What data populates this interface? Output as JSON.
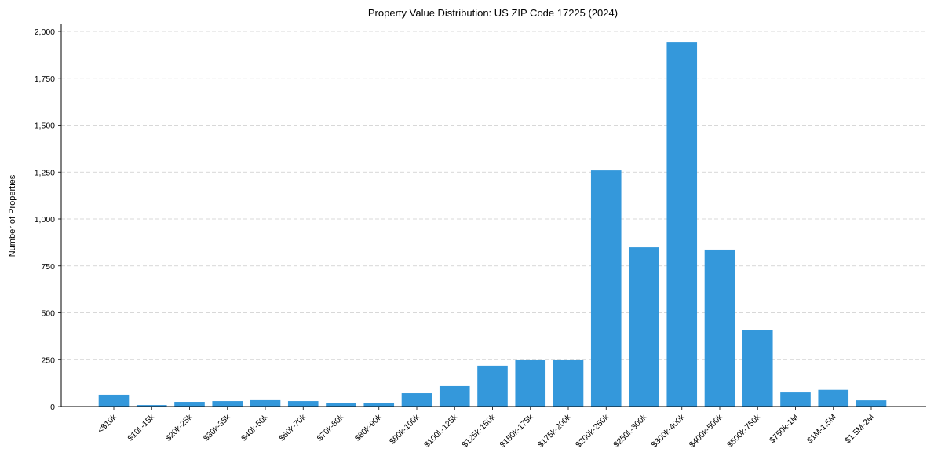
{
  "chart_data": {
    "type": "bar",
    "title": "Property Value Distribution: US ZIP Code 17225 (2024)",
    "xlabel": "",
    "ylabel": "Number of Properties",
    "ylim": [
      0,
      2000
    ],
    "yticks": [
      "0",
      "250",
      "500",
      "750",
      "1,000",
      "1,250",
      "1,500",
      "1,750",
      "2,000"
    ],
    "ytick_values": [
      0,
      250,
      500,
      750,
      1000,
      1250,
      1500,
      1750,
      2000
    ],
    "grid": "y-dashed",
    "bar_color": "#3498db",
    "categories": [
      "<$10k",
      "$10k-15k",
      "$20k-25k",
      "$30k-35k",
      "$40k-50k",
      "$60k-70k",
      "$70k-80k",
      "$80k-90k",
      "$90k-100k",
      "$100k-125k",
      "$125k-150k",
      "$150k-175k",
      "$175k-200k",
      "$200k-250k",
      "$250k-300k",
      "$300k-400k",
      "$400k-500k",
      "$500k-750k",
      "$750k-1M",
      "$1M-1.5M",
      "$1.5M-2M"
    ],
    "values": [
      63,
      8,
      25,
      29,
      38,
      29,
      17,
      17,
      71,
      109,
      218,
      247,
      247,
      1259,
      849,
      1941,
      837,
      410,
      75,
      89,
      33
    ]
  }
}
